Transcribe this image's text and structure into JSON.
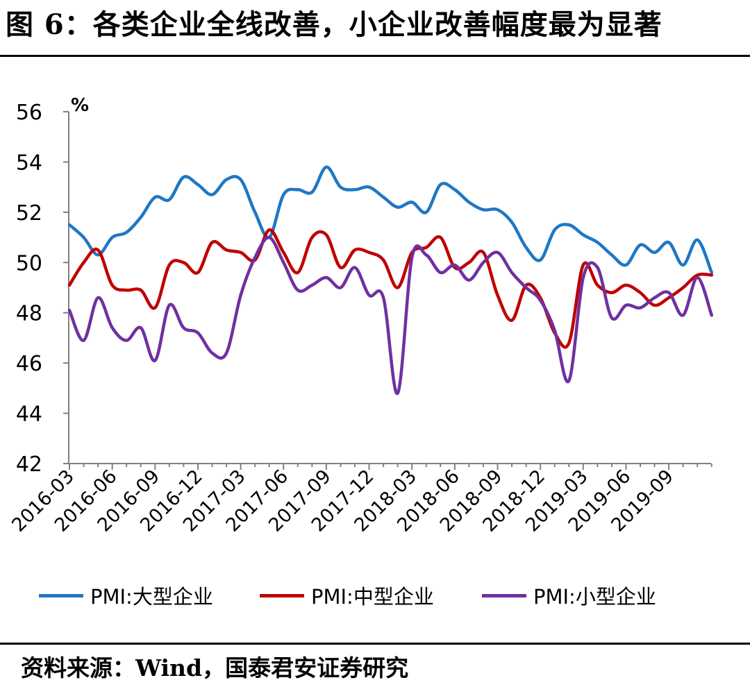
{
  "header": {
    "title": "图 6：各类企业全线改善，小企业改善幅度最为显著"
  },
  "footer": {
    "source": "资料来源：Wind，国泰君安证券研究"
  },
  "chart_data": {
    "type": "line",
    "title": "",
    "ylabel": "%",
    "ylim": [
      42,
      56
    ],
    "yticks": [
      "42",
      "44",
      "46",
      "48",
      "50",
      "52",
      "54",
      "56"
    ],
    "grid": false,
    "legend_position": "bottom",
    "x": [
      "2016-03",
      "2016-04",
      "2016-05",
      "2016-06",
      "2016-07",
      "2016-08",
      "2016-09",
      "2016-10",
      "2016-11",
      "2016-12",
      "2017-01",
      "2017-02",
      "2017-03",
      "2017-04",
      "2017-05",
      "2017-06",
      "2017-07",
      "2017-08",
      "2017-09",
      "2017-10",
      "2017-11",
      "2017-12",
      "2018-01",
      "2018-02",
      "2018-03",
      "2018-04",
      "2018-05",
      "2018-06",
      "2018-07",
      "2018-08",
      "2018-09",
      "2018-10",
      "2018-11",
      "2018-12",
      "2019-01",
      "2019-02",
      "2019-03",
      "2019-04",
      "2019-05",
      "2019-06",
      "2019-07",
      "2019-08",
      "2019-09",
      "2019-10",
      "2019-11",
      "2019-12"
    ],
    "xticks": [
      "2016-03",
      "2016-06",
      "2016-09",
      "2016-12",
      "2017-03",
      "2017-06",
      "2017-09",
      "2017-12",
      "2018-03",
      "2018-06",
      "2018-09",
      "2018-12",
      "2019-03",
      "2019-06",
      "2019-09"
    ],
    "series": [
      {
        "name": "PMI:大型企业",
        "color": "#1f77c4",
        "values": [
          51.5,
          51.0,
          50.3,
          51.0,
          51.2,
          51.8,
          52.6,
          52.5,
          53.4,
          53.1,
          52.7,
          53.3,
          53.3,
          52.0,
          51.0,
          52.7,
          52.9,
          52.8,
          53.8,
          53.0,
          52.9,
          53.0,
          52.6,
          52.2,
          52.4,
          52.0,
          53.1,
          52.9,
          52.4,
          52.1,
          52.1,
          51.6,
          50.6,
          50.1,
          51.3,
          51.5,
          51.1,
          50.8,
          50.3,
          49.9,
          50.7,
          50.4,
          50.8,
          49.9,
          50.9,
          49.6
        ]
      },
      {
        "name": "PMI:中型企业",
        "color": "#c00000",
        "values": [
          49.1,
          50.0,
          50.5,
          49.1,
          48.9,
          48.9,
          48.2,
          49.9,
          50.0,
          49.6,
          50.8,
          50.5,
          50.4,
          50.1,
          51.3,
          50.4,
          49.6,
          51.0,
          51.1,
          49.8,
          50.5,
          50.4,
          50.1,
          49.0,
          50.4,
          50.6,
          51.0,
          49.8,
          50.0,
          50.4,
          48.7,
          47.7,
          49.1,
          48.6,
          47.2,
          46.8,
          49.9,
          49.1,
          48.8,
          49.1,
          48.8,
          48.3,
          48.6,
          49.0,
          49.5,
          49.5
        ]
      },
      {
        "name": "PMI:小型企业",
        "color": "#7030a0",
        "values": [
          48.1,
          46.9,
          48.6,
          47.4,
          46.9,
          47.4,
          46.1,
          48.3,
          47.4,
          47.2,
          46.4,
          46.4,
          48.7,
          50.2,
          51.0,
          50.0,
          48.9,
          49.1,
          49.4,
          49.0,
          49.8,
          48.7,
          48.6,
          44.8,
          50.2,
          50.3,
          49.6,
          49.9,
          49.3,
          50.0,
          50.4,
          49.6,
          49.0,
          48.5,
          47.3,
          45.3,
          49.4,
          49.8,
          47.8,
          48.3,
          48.2,
          48.6,
          48.8,
          47.9,
          49.4,
          47.9
        ]
      }
    ]
  }
}
